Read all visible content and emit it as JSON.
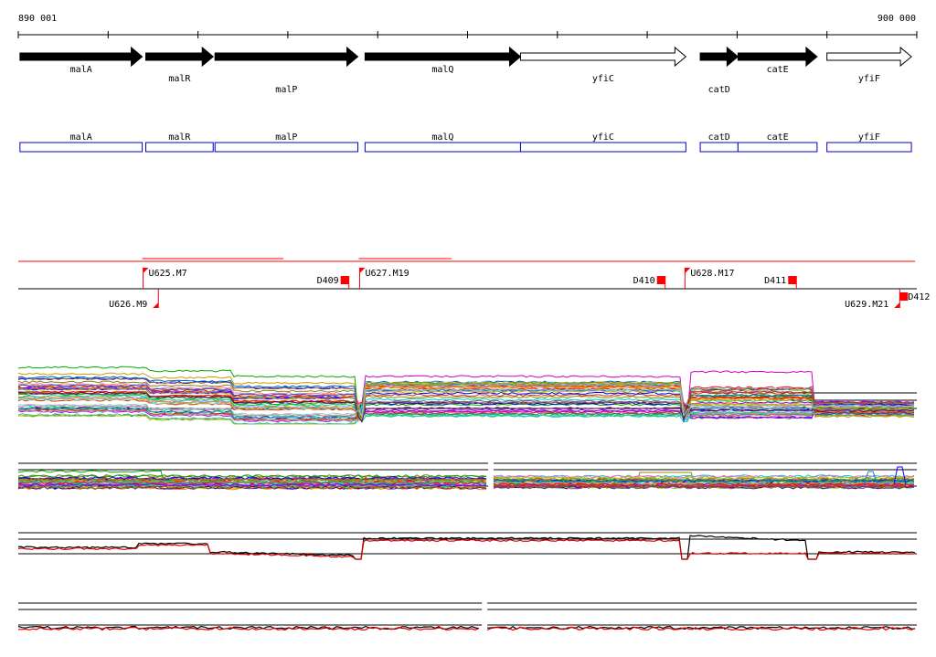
{
  "ruler": {
    "start_label": "890 001",
    "end_label": "900 000",
    "start_bp": 890001,
    "end_bp": 900000
  },
  "genes": [
    {
      "name": "malA",
      "start": 890020,
      "end": 891380,
      "strand": "+",
      "filled": true,
      "label_row": 0
    },
    {
      "name": "malR",
      "start": 891420,
      "end": 892170,
      "strand": "+",
      "filled": true,
      "label_row": 1
    },
    {
      "name": "malP",
      "start": 892190,
      "end": 893780,
      "strand": "+",
      "filled": true,
      "label_row": 2
    },
    {
      "name": "malQ",
      "start": 893860,
      "end": 895590,
      "strand": "+",
      "filled": true,
      "label_row": 0
    },
    {
      "name": "yfiC",
      "start": 895590,
      "end": 897430,
      "strand": "+",
      "filled": false,
      "label_row": 1
    },
    {
      "name": "catD",
      "start": 897590,
      "end": 898010,
      "strand": "+",
      "filled": true,
      "label_row": 2
    },
    {
      "name": "catE",
      "start": 898010,
      "end": 898890,
      "strand": "+",
      "filled": true,
      "label_row": 0
    },
    {
      "name": "yfiF",
      "start": 899000,
      "end": 899940,
      "strand": "+",
      "filled": false,
      "label_row": 1
    }
  ],
  "cds_track": {
    "outline_color": "#0000cc"
  },
  "segments": [
    {
      "start": 890001,
      "end": 899980,
      "row": 0
    },
    {
      "start": 891380,
      "end": 892950,
      "row": 1
    },
    {
      "start": 893790,
      "end": 897280,
      "row": 0
    },
    {
      "start": 893790,
      "end": 894820,
      "row": 1
    },
    {
      "start": 897430,
      "end": 898840,
      "row": 0
    }
  ],
  "features": [
    {
      "label": "U625.M7",
      "pos": 891390,
      "kind": "up",
      "side": "above",
      "label_side": "right"
    },
    {
      "label": "D409",
      "pos": 893680,
      "kind": "down",
      "side": "above",
      "label_side": "left"
    },
    {
      "label": "U627.M19",
      "pos": 893800,
      "kind": "up",
      "side": "above",
      "label_side": "right"
    },
    {
      "label": "D410",
      "pos": 897200,
      "kind": "down",
      "side": "above",
      "label_side": "left"
    },
    {
      "label": "U628.M17",
      "pos": 897420,
      "kind": "up",
      "side": "above",
      "label_side": "right"
    },
    {
      "label": "D411",
      "pos": 898660,
      "kind": "down",
      "side": "above",
      "label_side": "left"
    },
    {
      "label": "U626.M9",
      "pos": 891560,
      "kind": "up",
      "side": "below",
      "label_side": "left"
    },
    {
      "label": "U629.M21",
      "pos": 899810,
      "kind": "up",
      "side": "below",
      "label_side": "left"
    },
    {
      "label": "D412",
      "pos": 899810,
      "kind": "down",
      "side": "below",
      "label_side": "right"
    }
  ],
  "panels": [
    {
      "id": "expression-all",
      "lines": 40,
      "boundaries": [
        893790,
        897420,
        898840
      ]
    },
    {
      "id": "expression-strand",
      "lines": 30,
      "split_at": 895250
    },
    {
      "id": "expression-pair",
      "series_colors": [
        "#000000",
        "#e00000"
      ],
      "boundaries": [
        893790,
        897420,
        898840
      ]
    },
    {
      "id": "expression-flat",
      "series_colors": [
        "#000000",
        "#e00000"
      ],
      "split_at": 895180
    }
  ],
  "colors": {
    "feature": "#ff0000",
    "segment": "#ff0000",
    "gene_fill": "#000000",
    "line_palette": [
      "#00aa00",
      "#cc00cc",
      "#0000ff",
      "#00cccc",
      "#ff8800",
      "#888800",
      "#ff0000",
      "#8800ff",
      "#00cc66",
      "#996633",
      "#ff66cc",
      "#666666",
      "#aacc00",
      "#0066cc",
      "#cc3300",
      "#33cc99",
      "#9999ff",
      "#cc9900",
      "#660066",
      "#99cccc"
    ]
  }
}
